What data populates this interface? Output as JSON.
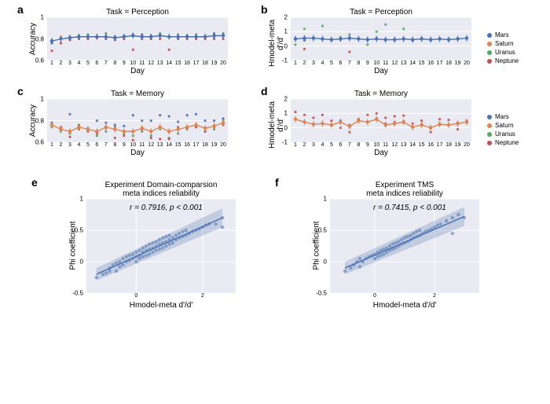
{
  "colors": {
    "mars": "#4c72b0",
    "saturn": "#dd8452",
    "uranus": "#55a868",
    "neptune": "#c44e52",
    "line_blue": "#4c72b0",
    "line_orange": "#dd8452",
    "grid": "#ffffff",
    "plot_bg": "#eaeaf2",
    "fill": "rgba(76,114,176,0.25)"
  },
  "legend": [
    {
      "label": "Mars",
      "color": "#4c72b0"
    },
    {
      "label": "Saturn",
      "color": "#dd8452"
    },
    {
      "label": "Uranus",
      "color": "#55a868"
    },
    {
      "label": "Neptune",
      "color": "#c44e52"
    }
  ],
  "panel_a": {
    "label": "a",
    "title": "Task = Perception",
    "ylabel": "Accuracy",
    "xlabel": "Day",
    "ylim": [
      0.6,
      1.0
    ],
    "yticks": [
      0.6,
      0.8,
      1.0
    ],
    "xticks": [
      1,
      2,
      3,
      4,
      5,
      6,
      7,
      8,
      9,
      10,
      11,
      12,
      13,
      14,
      15,
      16,
      17,
      18,
      19,
      20
    ],
    "line_color": "#4c72b0",
    "line": [
      0.78,
      0.8,
      0.81,
      0.82,
      0.82,
      0.82,
      0.82,
      0.81,
      0.82,
      0.83,
      0.82,
      0.82,
      0.83,
      0.82,
      0.82,
      0.82,
      0.82,
      0.82,
      0.83,
      0.83
    ],
    "scatter": {
      "mars": [
        0.76,
        0.8,
        0.8,
        0.82,
        0.82,
        0.82,
        0.82,
        0.82,
        0.82,
        0.84,
        0.84,
        0.83,
        0.84,
        0.82,
        0.82,
        0.83,
        0.82,
        0.82,
        0.85,
        0.84
      ],
      "saturn": [
        0.78,
        0.82,
        0.82,
        0.82,
        0.82,
        0.82,
        0.82,
        0.81,
        0.82,
        0.83,
        0.82,
        0.82,
        0.83,
        0.82,
        0.82,
        0.82,
        0.82,
        0.82,
        0.82,
        0.83
      ],
      "uranus": [
        0.79,
        0.8,
        0.82,
        0.83,
        0.84,
        0.82,
        0.85,
        0.82,
        0.83,
        0.83,
        0.83,
        0.82,
        0.85,
        0.82,
        0.84,
        0.82,
        0.84,
        0.82,
        0.84,
        0.85
      ],
      "neptune": [
        0.69,
        0.76,
        0.79,
        0.8,
        0.8,
        0.81,
        0.8,
        0.79,
        0.8,
        0.7,
        0.8,
        0.8,
        0.8,
        0.7,
        0.8,
        0.8,
        0.8,
        0.8,
        0.8,
        0.8
      ]
    }
  },
  "panel_b": {
    "label": "b",
    "title": "Task = Perception",
    "ylabel": "Hmodel-meta d'/d'",
    "xlabel": "Day",
    "ylim": [
      -1,
      2
    ],
    "yticks": [
      -1,
      0,
      1,
      2
    ],
    "xticks": [
      1,
      2,
      3,
      4,
      5,
      6,
      7,
      8,
      9,
      10,
      11,
      12,
      13,
      14,
      15,
      16,
      17,
      18,
      19,
      20
    ],
    "line_color": "#4c72b0",
    "line": [
      0.5,
      0.55,
      0.55,
      0.5,
      0.45,
      0.5,
      0.55,
      0.5,
      0.45,
      0.5,
      0.45,
      0.45,
      0.5,
      0.45,
      0.5,
      0.45,
      0.5,
      0.45,
      0.5,
      0.55
    ],
    "scatter": {
      "mars": [
        0.55,
        0.4,
        0.6,
        0.5,
        0.45,
        0.45,
        0.6,
        0.5,
        0.5,
        0.55,
        0.45,
        0.45,
        0.5,
        0.4,
        0.5,
        0.4,
        0.5,
        0.45,
        0.5,
        0.55
      ],
      "saturn": [
        0.5,
        0.6,
        0.55,
        0.5,
        0.45,
        0.55,
        0.55,
        0.5,
        0.45,
        0.5,
        0.45,
        0.45,
        0.5,
        0.45,
        0.5,
        0.45,
        0.5,
        0.45,
        0.5,
        0.55
      ],
      "uranus": [
        0.1,
        1.2,
        0.6,
        1.4,
        0.5,
        0.6,
        0.8,
        0.5,
        0.1,
        1.0,
        1.5,
        0.5,
        1.2,
        0.5,
        0.55,
        0.5,
        0.5,
        0.5,
        0.55,
        0.6
      ],
      "neptune": [
        0.5,
        -0.2,
        0.55,
        0.5,
        0.45,
        0.5,
        -0.4,
        0.5,
        0.45,
        0.5,
        0.45,
        0.45,
        0.5,
        0.45,
        0.5,
        0.45,
        0.5,
        0.45,
        0.5,
        0.55
      ]
    }
  },
  "panel_c": {
    "label": "c",
    "title": "Task = Memory",
    "ylabel": "Accuracy",
    "xlabel": "Day",
    "ylim": [
      0.6,
      1.0
    ],
    "yticks": [
      0.6,
      0.8,
      1.0
    ],
    "xticks": [
      1,
      2,
      3,
      4,
      5,
      6,
      7,
      8,
      9,
      10,
      11,
      12,
      13,
      14,
      15,
      16,
      17,
      18,
      19,
      20
    ],
    "line_color": "#dd8452",
    "line": [
      0.76,
      0.72,
      0.7,
      0.74,
      0.72,
      0.7,
      0.74,
      0.72,
      0.7,
      0.7,
      0.73,
      0.7,
      0.74,
      0.7,
      0.72,
      0.74,
      0.76,
      0.73,
      0.75,
      0.78
    ],
    "scatter": {
      "mars": [
        0.78,
        0.72,
        0.86,
        0.76,
        0.73,
        0.8,
        0.78,
        0.76,
        0.75,
        0.85,
        0.8,
        0.8,
        0.85,
        0.84,
        0.79,
        0.85,
        0.86,
        0.8,
        0.8,
        0.82
      ],
      "saturn": [
        0.76,
        0.72,
        0.7,
        0.74,
        0.72,
        0.7,
        0.74,
        0.72,
        0.7,
        0.7,
        0.73,
        0.7,
        0.74,
        0.7,
        0.72,
        0.74,
        0.76,
        0.73,
        0.75,
        0.78
      ],
      "uranus": [
        0.74,
        0.7,
        0.68,
        0.76,
        0.71,
        0.66,
        0.7,
        0.74,
        0.68,
        0.66,
        0.7,
        0.66,
        0.72,
        0.64,
        0.68,
        0.72,
        0.74,
        0.7,
        0.72,
        0.8
      ],
      "neptune": [
        0.76,
        0.74,
        0.65,
        0.72,
        0.7,
        0.68,
        0.73,
        0.64,
        0.66,
        0.62,
        0.72,
        0.64,
        0.63,
        0.63,
        0.74,
        0.73,
        0.74,
        0.7,
        0.74,
        0.76
      ]
    }
  },
  "panel_d": {
    "label": "d",
    "title": "Task = Memory",
    "ylabel": "Hmodel-meta d'/d'",
    "xlabel": "Day",
    "ylim": [
      -1,
      2
    ],
    "yticks": [
      -1,
      0,
      1,
      2
    ],
    "xticks": [
      1,
      2,
      3,
      4,
      5,
      6,
      7,
      8,
      9,
      10,
      11,
      12,
      13,
      14,
      15,
      16,
      17,
      18,
      19,
      20
    ],
    "line_color": "#dd8452",
    "line": [
      0.6,
      0.4,
      0.25,
      0.3,
      0.2,
      0.4,
      0.1,
      0.5,
      0.4,
      0.6,
      0.2,
      0.3,
      0.4,
      0.05,
      0.2,
      0.0,
      0.25,
      0.2,
      0.3,
      0.4
    ],
    "scatter": {
      "mars": [
        0.6,
        0.4,
        0.25,
        0.3,
        0.2,
        0.5,
        0.2,
        0.6,
        0.4,
        0.65,
        0.3,
        0.4,
        0.45,
        0.1,
        0.25,
        0.05,
        0.3,
        0.25,
        0.35,
        0.45
      ],
      "saturn": [
        0.6,
        0.4,
        0.25,
        0.3,
        0.2,
        0.4,
        0.1,
        0.5,
        0.4,
        0.6,
        0.2,
        0.3,
        0.4,
        0.05,
        0.2,
        0.0,
        0.25,
        0.2,
        0.3,
        0.4
      ],
      "uranus": [
        0.6,
        0.4,
        0.25,
        0.3,
        0.2,
        0.4,
        0.1,
        0.5,
        0.4,
        0.6,
        0.2,
        0.3,
        0.4,
        0.05,
        0.2,
        0.0,
        0.25,
        0.2,
        0.3,
        0.4
      ],
      "neptune": [
        1.1,
        0.9,
        0.7,
        0.9,
        0.5,
        0.0,
        -0.3,
        0.6,
        0.9,
        1.0,
        0.7,
        0.8,
        0.85,
        0.3,
        0.5,
        -0.3,
        0.6,
        0.55,
        -0.1,
        0.5
      ]
    }
  },
  "panel_e": {
    "label": "e",
    "title": "Experiment Domain-comparsion\nmeta indices reliability",
    "ylabel": "Phi coefficient",
    "xlabel": "Hmodel-meta d'/d'",
    "ylim": [
      -0.5,
      1.0
    ],
    "yticks": [
      -0.5,
      0,
      0.5,
      1.0
    ],
    "xlim": [
      -1.5,
      3.0
    ],
    "xticks": [
      0,
      2
    ],
    "r_label": "r = 0.7916, p < 0.001",
    "reg_line": {
      "x1": -1.2,
      "y1": -0.2,
      "x2": 2.6,
      "y2": 0.7
    },
    "points": [
      [
        -1.2,
        -0.25
      ],
      [
        -1.0,
        -0.2
      ],
      [
        -0.9,
        -0.18
      ],
      [
        -0.8,
        -0.15
      ],
      [
        -0.8,
        -0.1
      ],
      [
        -0.7,
        -0.05
      ],
      [
        -0.6,
        -0.15
      ],
      [
        -0.6,
        -0.02
      ],
      [
        -0.5,
        -0.08
      ],
      [
        -0.5,
        0.0
      ],
      [
        -0.4,
        -0.05
      ],
      [
        -0.4,
        0.05
      ],
      [
        -0.3,
        0.0
      ],
      [
        -0.3,
        0.08
      ],
      [
        -0.2,
        0.02
      ],
      [
        -0.2,
        0.1
      ],
      [
        -0.1,
        0.05
      ],
      [
        -0.1,
        0.12
      ],
      [
        0.0,
        0.0
      ],
      [
        0.0,
        0.08
      ],
      [
        0.0,
        0.15
      ],
      [
        0.1,
        0.05
      ],
      [
        0.1,
        0.1
      ],
      [
        0.1,
        0.18
      ],
      [
        0.2,
        0.08
      ],
      [
        0.2,
        0.15
      ],
      [
        0.2,
        0.22
      ],
      [
        0.3,
        0.1
      ],
      [
        0.3,
        0.18
      ],
      [
        0.3,
        0.25
      ],
      [
        0.4,
        0.12
      ],
      [
        0.4,
        0.2
      ],
      [
        0.4,
        0.28
      ],
      [
        0.5,
        0.15
      ],
      [
        0.5,
        0.22
      ],
      [
        0.5,
        0.3
      ],
      [
        0.6,
        0.18
      ],
      [
        0.6,
        0.25
      ],
      [
        0.6,
        0.32
      ],
      [
        0.7,
        0.2
      ],
      [
        0.7,
        0.28
      ],
      [
        0.7,
        0.35
      ],
      [
        0.8,
        0.22
      ],
      [
        0.8,
        0.3
      ],
      [
        0.8,
        0.38
      ],
      [
        0.9,
        0.25
      ],
      [
        0.9,
        0.32
      ],
      [
        0.9,
        0.4
      ],
      [
        1.0,
        0.28
      ],
      [
        1.0,
        0.35
      ],
      [
        1.0,
        0.42
      ],
      [
        1.1,
        0.3
      ],
      [
        1.1,
        0.38
      ],
      [
        1.2,
        0.35
      ],
      [
        1.2,
        0.42
      ],
      [
        1.3,
        0.38
      ],
      [
        1.3,
        0.45
      ],
      [
        1.4,
        0.4
      ],
      [
        1.4,
        0.48
      ],
      [
        1.5,
        0.42
      ],
      [
        1.5,
        0.5
      ],
      [
        1.6,
        0.45
      ],
      [
        1.7,
        0.48
      ],
      [
        1.8,
        0.5
      ],
      [
        1.9,
        0.52
      ],
      [
        2.0,
        0.55
      ],
      [
        2.1,
        0.58
      ],
      [
        2.2,
        0.6
      ],
      [
        2.4,
        0.6
      ],
      [
        2.6,
        0.55
      ],
      [
        2.6,
        0.7
      ]
    ]
  },
  "panel_f": {
    "label": "f",
    "title": "Experiment TMS\nmeta indices reliability",
    "ylabel": "Phi coefficient",
    "xlabel": "Hmodel-meta d'/d'",
    "ylim": [
      -0.5,
      1.0
    ],
    "yticks": [
      -0.5,
      0,
      0.5,
      1.0
    ],
    "xlim": [
      -1.5,
      3.5
    ],
    "xticks": [
      0,
      2
    ],
    "r_label": "r = 0.7415, p < 0.001",
    "reg_line": {
      "x1": -1.0,
      "y1": -0.1,
      "x2": 3.0,
      "y2": 0.72
    },
    "points": [
      [
        -1.0,
        -0.15
      ],
      [
        -0.8,
        -0.1
      ],
      [
        -0.7,
        -0.05
      ],
      [
        -0.6,
        0.0
      ],
      [
        -0.5,
        -0.08
      ],
      [
        -0.5,
        0.05
      ],
      [
        -0.4,
        0.0
      ],
      [
        -0.3,
        0.05
      ],
      [
        -0.2,
        0.08
      ],
      [
        -0.1,
        0.1
      ],
      [
        0.0,
        0.05
      ],
      [
        0.0,
        0.12
      ],
      [
        0.1,
        0.08
      ],
      [
        0.1,
        0.15
      ],
      [
        0.2,
        0.1
      ],
      [
        0.2,
        0.18
      ],
      [
        0.3,
        0.12
      ],
      [
        0.3,
        0.2
      ],
      [
        0.4,
        0.15
      ],
      [
        0.4,
        0.22
      ],
      [
        0.5,
        0.18
      ],
      [
        0.5,
        0.25
      ],
      [
        0.6,
        0.2
      ],
      [
        0.6,
        0.28
      ],
      [
        0.7,
        0.22
      ],
      [
        0.7,
        0.3
      ],
      [
        0.8,
        0.25
      ],
      [
        0.8,
        0.32
      ],
      [
        0.9,
        0.28
      ],
      [
        0.9,
        0.35
      ],
      [
        1.0,
        0.3
      ],
      [
        1.0,
        0.38
      ],
      [
        1.1,
        0.32
      ],
      [
        1.1,
        0.4
      ],
      [
        1.2,
        0.35
      ],
      [
        1.2,
        0.42
      ],
      [
        1.3,
        0.38
      ],
      [
        1.3,
        0.45
      ],
      [
        1.4,
        0.4
      ],
      [
        1.4,
        0.48
      ],
      [
        1.5,
        0.42
      ],
      [
        1.5,
        0.5
      ],
      [
        1.6,
        0.45
      ],
      [
        1.7,
        0.48
      ],
      [
        1.8,
        0.5
      ],
      [
        1.9,
        0.52
      ],
      [
        2.0,
        0.55
      ],
      [
        2.1,
        0.58
      ],
      [
        2.2,
        0.6
      ],
      [
        2.4,
        0.65
      ],
      [
        2.6,
        0.45
      ],
      [
        2.6,
        0.7
      ],
      [
        2.8,
        0.75
      ],
      [
        3.0,
        0.7
      ]
    ]
  }
}
